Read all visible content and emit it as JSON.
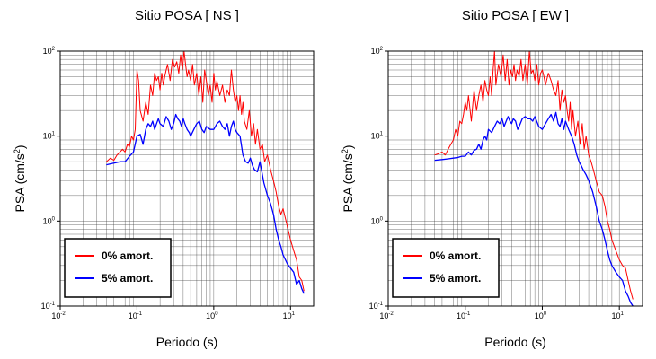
{
  "chart_data": [
    {
      "type": "line",
      "title": "Sitio POSA [ NS ]",
      "xlabel": "Periodo (s)",
      "ylabel": "PSA (cm/s²)",
      "ylabel_base": "PSA (cm/s",
      "ylabel_sup": "2",
      "ylabel_close": ")",
      "xscale": "log",
      "yscale": "log",
      "xlim": [
        0.01,
        20
      ],
      "ylim": [
        0.1,
        100
      ],
      "grid": true,
      "legend_position": "bottom-left",
      "x_ticks": [
        {
          "base": "10",
          "exp": "-2"
        },
        {
          "base": "10",
          "exp": "-1"
        },
        {
          "base": "10",
          "exp": "0"
        },
        {
          "base": "10",
          "exp": "1"
        }
      ],
      "y_ticks": [
        {
          "base": "10",
          "exp": "-1"
        },
        {
          "base": "10",
          "exp": "0"
        },
        {
          "base": "10",
          "exp": "1"
        },
        {
          "base": "10",
          "exp": "2"
        }
      ],
      "series": [
        {
          "name": "0% amort.",
          "color": "#ff0000",
          "x": [
            0.04,
            0.045,
            0.05,
            0.055,
            0.06,
            0.065,
            0.07,
            0.075,
            0.08,
            0.085,
            0.09,
            0.095,
            0.1,
            0.105,
            0.11,
            0.12,
            0.13,
            0.14,
            0.15,
            0.16,
            0.17,
            0.18,
            0.19,
            0.2,
            0.21,
            0.22,
            0.23,
            0.24,
            0.25,
            0.27,
            0.29,
            0.31,
            0.33,
            0.35,
            0.37,
            0.39,
            0.41,
            0.43,
            0.45,
            0.47,
            0.5,
            0.53,
            0.56,
            0.6,
            0.64,
            0.68,
            0.72,
            0.76,
            0.8,
            0.85,
            0.9,
            0.95,
            1.0,
            1.05,
            1.1,
            1.2,
            1.3,
            1.4,
            1.5,
            1.6,
            1.7,
            1.8,
            1.9,
            2.0,
            2.1,
            2.2,
            2.3,
            2.4,
            2.5,
            2.7,
            2.9,
            3.1,
            3.3,
            3.5,
            3.7,
            4.0,
            4.3,
            4.6,
            5.0,
            5.5,
            6.0,
            6.5,
            7.0,
            7.5,
            8.0,
            9.0,
            10.0,
            11.0,
            12.0,
            13.0,
            14.0,
            15.0
          ],
          "y": [
            5,
            5.5,
            5.2,
            6,
            6.5,
            7,
            6.5,
            8,
            7.5,
            10,
            9,
            12,
            60,
            45,
            20,
            15,
            25,
            18,
            40,
            30,
            55,
            45,
            50,
            35,
            55,
            40,
            50,
            60,
            70,
            45,
            80,
            65,
            75,
            55,
            90,
            60,
            100,
            70,
            50,
            60,
            45,
            70,
            40,
            55,
            30,
            50,
            25,
            60,
            45,
            30,
            40,
            25,
            55,
            35,
            45,
            30,
            40,
            25,
            35,
            30,
            60,
            35,
            25,
            30,
            20,
            30,
            18,
            25,
            15,
            12,
            20,
            10,
            14,
            8,
            12,
            7,
            8,
            5,
            6,
            4,
            3,
            2.2,
            1.5,
            1.2,
            1.4,
            0.9,
            0.6,
            0.45,
            0.35,
            0.22,
            0.2,
            0.15
          ]
        },
        {
          "name": "5% amort.",
          "color": "#0000ff",
          "x": [
            0.04,
            0.05,
            0.06,
            0.07,
            0.08,
            0.09,
            0.1,
            0.11,
            0.12,
            0.13,
            0.14,
            0.15,
            0.16,
            0.17,
            0.18,
            0.19,
            0.2,
            0.22,
            0.24,
            0.26,
            0.28,
            0.3,
            0.32,
            0.34,
            0.36,
            0.38,
            0.4,
            0.42,
            0.45,
            0.48,
            0.5,
            0.55,
            0.6,
            0.65,
            0.7,
            0.75,
            0.8,
            0.9,
            1.0,
            1.1,
            1.2,
            1.3,
            1.4,
            1.5,
            1.6,
            1.7,
            1.8,
            1.9,
            2.0,
            2.2,
            2.4,
            2.6,
            2.8,
            3.0,
            3.2,
            3.4,
            3.7,
            4.0,
            4.5,
            5.0,
            5.5,
            6.0,
            6.5,
            7.0,
            7.5,
            8.0,
            9.0,
            10.0,
            11.0,
            12.0,
            13.0,
            14.0,
            15.0
          ],
          "y": [
            4.6,
            4.8,
            5,
            5,
            5.8,
            6.5,
            10,
            10.5,
            8,
            12,
            14,
            13,
            15,
            12,
            14,
            16,
            14,
            13,
            17,
            15,
            12,
            14,
            18,
            16,
            15,
            13,
            16,
            14,
            12,
            11,
            10,
            12,
            14,
            15,
            12,
            11,
            13,
            12,
            12,
            14,
            15,
            13,
            12,
            14,
            10,
            13,
            15,
            12,
            11,
            10,
            6,
            5,
            4.8,
            5.5,
            4.5,
            4,
            3.8,
            5,
            2.8,
            2,
            1.6,
            1.2,
            0.8,
            0.6,
            0.5,
            0.4,
            0.32,
            0.28,
            0.25,
            0.18,
            0.2,
            0.16,
            0.14
          ]
        }
      ]
    },
    {
      "type": "line",
      "title": "Sitio POSA [ EW ]",
      "xlabel": "Periodo (s)",
      "ylabel": "PSA (cm/s²)",
      "ylabel_base": "PSA (cm/s",
      "ylabel_sup": "2",
      "ylabel_close": ")",
      "xscale": "log",
      "yscale": "log",
      "xlim": [
        0.01,
        20
      ],
      "ylim": [
        0.1,
        100
      ],
      "grid": true,
      "legend_position": "bottom-left",
      "x_ticks": [
        {
          "base": "10",
          "exp": "-2"
        },
        {
          "base": "10",
          "exp": "-1"
        },
        {
          "base": "10",
          "exp": "0"
        },
        {
          "base": "10",
          "exp": "1"
        }
      ],
      "y_ticks": [
        {
          "base": "10",
          "exp": "-1"
        },
        {
          "base": "10",
          "exp": "0"
        },
        {
          "base": "10",
          "exp": "1"
        },
        {
          "base": "10",
          "exp": "2"
        }
      ],
      "series": [
        {
          "name": "0% amort.",
          "color": "#ff0000",
          "x": [
            0.04,
            0.045,
            0.05,
            0.055,
            0.06,
            0.065,
            0.07,
            0.075,
            0.08,
            0.085,
            0.09,
            0.095,
            0.1,
            0.105,
            0.11,
            0.12,
            0.13,
            0.14,
            0.15,
            0.16,
            0.17,
            0.18,
            0.19,
            0.2,
            0.21,
            0.22,
            0.23,
            0.24,
            0.25,
            0.27,
            0.29,
            0.31,
            0.33,
            0.35,
            0.37,
            0.39,
            0.41,
            0.43,
            0.45,
            0.47,
            0.5,
            0.53,
            0.56,
            0.6,
            0.64,
            0.68,
            0.72,
            0.76,
            0.8,
            0.85,
            0.9,
            0.95,
            1.0,
            1.05,
            1.1,
            1.2,
            1.3,
            1.4,
            1.5,
            1.6,
            1.7,
            1.8,
            1.9,
            2.0,
            2.1,
            2.2,
            2.3,
            2.4,
            2.5,
            2.7,
            2.9,
            3.1,
            3.3,
            3.5,
            3.7,
            4.0,
            4.3,
            4.6,
            5.0,
            5.5,
            6.0,
            6.5,
            7.0,
            7.5,
            8.0,
            9.0,
            10.0,
            11.0,
            12.0,
            13.0,
            14.0,
            15.0
          ],
          "y": [
            6,
            6.2,
            6.5,
            6,
            7,
            8,
            9,
            12,
            10,
            15,
            14,
            18,
            25,
            20,
            30,
            15,
            35,
            20,
            30,
            40,
            25,
            45,
            35,
            30,
            50,
            30,
            60,
            100,
            40,
            70,
            50,
            90,
            45,
            80,
            40,
            60,
            50,
            70,
            45,
            60,
            50,
            80,
            45,
            70,
            40,
            100,
            55,
            60,
            45,
            70,
            40,
            55,
            60,
            50,
            40,
            55,
            45,
            35,
            30,
            45,
            20,
            35,
            25,
            30,
            20,
            15,
            25,
            12,
            20,
            10,
            15,
            8,
            14,
            7,
            10,
            6,
            5,
            4,
            3,
            2.2,
            2,
            1.5,
            1,
            0.8,
            0.6,
            0.45,
            0.35,
            0.3,
            0.28,
            0.2,
            0.15,
            0.12
          ]
        },
        {
          "name": "5% amort.",
          "color": "#0000ff",
          "x": [
            0.04,
            0.05,
            0.06,
            0.07,
            0.08,
            0.09,
            0.1,
            0.11,
            0.12,
            0.13,
            0.14,
            0.15,
            0.16,
            0.17,
            0.18,
            0.19,
            0.2,
            0.22,
            0.24,
            0.26,
            0.28,
            0.3,
            0.32,
            0.34,
            0.36,
            0.38,
            0.4,
            0.42,
            0.45,
            0.48,
            0.5,
            0.55,
            0.6,
            0.65,
            0.7,
            0.75,
            0.8,
            0.9,
            1.0,
            1.1,
            1.2,
            1.3,
            1.4,
            1.5,
            1.6,
            1.7,
            1.8,
            1.9,
            2.0,
            2.2,
            2.4,
            2.6,
            2.8,
            3.0,
            3.2,
            3.4,
            3.7,
            4.0,
            4.5,
            5.0,
            5.5,
            6.0,
            6.5,
            7.0,
            7.5,
            8.0,
            9.0,
            10.0,
            11.0,
            12.0,
            13.0,
            14.0,
            15.0
          ],
          "y": [
            5.2,
            5.3,
            5.4,
            5.5,
            5.6,
            5.8,
            5.8,
            6.5,
            6,
            6.8,
            7,
            8,
            7,
            9,
            10,
            9,
            12,
            11,
            13,
            15,
            14,
            16,
            13,
            15,
            17,
            15,
            14,
            16,
            15,
            12,
            13,
            16,
            17,
            16,
            16,
            15,
            17,
            13,
            12,
            14,
            16,
            18,
            15,
            19,
            14,
            13,
            16,
            12,
            15,
            12,
            10,
            8,
            6,
            5,
            4.5,
            4,
            3.5,
            3,
            2.2,
            1.5,
            1,
            0.8,
            0.6,
            0.45,
            0.35,
            0.3,
            0.25,
            0.22,
            0.2,
            0.15,
            0.13,
            0.11,
            0.1
          ]
        }
      ]
    }
  ]
}
